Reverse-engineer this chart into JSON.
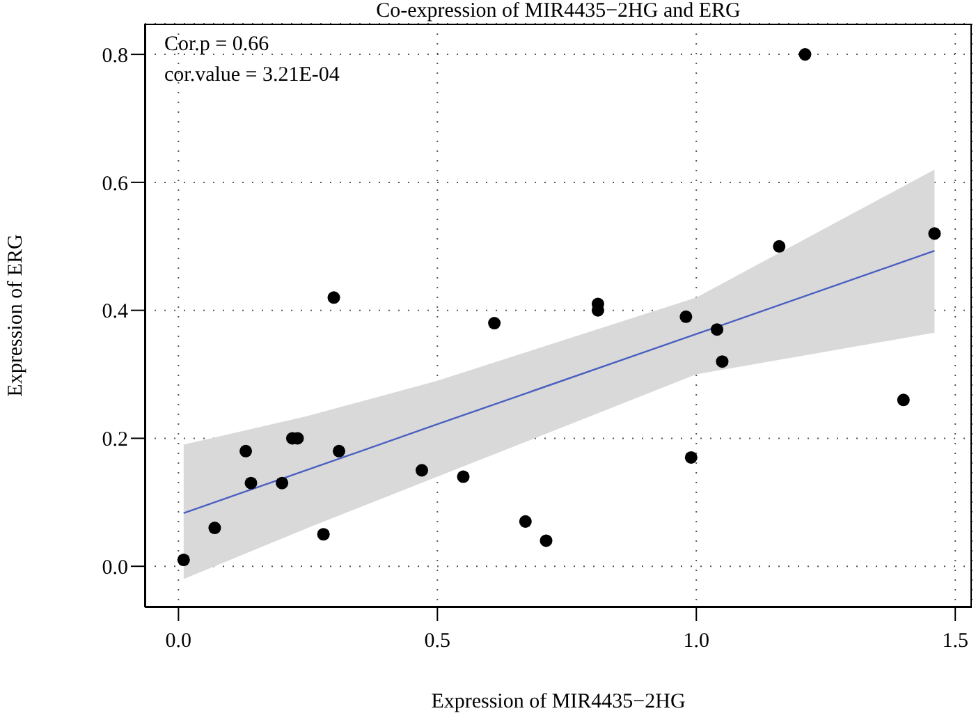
{
  "chart_data": {
    "type": "scatter",
    "title": "Co-expression of MIR4435−2HG and ERG",
    "xlabel": "Expression of MIR4435−2HG",
    "ylabel": "Expression of ERG",
    "annotations": [
      "Cor.p = 0.66",
      "cor.value = 3.21E-04"
    ],
    "xlim": [
      -0.065,
      1.532
    ],
    "ylim": [
      -0.064,
      0.848
    ],
    "xticks": [
      {
        "value": 0,
        "label": "0.0"
      },
      {
        "value": 0.5,
        "label": "0.5"
      },
      {
        "value": 1,
        "label": "1.0"
      },
      {
        "value": 1.5,
        "label": "1.5"
      }
    ],
    "yticks": [
      {
        "value": 0,
        "label": "0.0"
      },
      {
        "value": 0.2,
        "label": "0.2"
      },
      {
        "value": 0.4,
        "label": "0.4"
      },
      {
        "value": 0.6,
        "label": "0.6"
      },
      {
        "value": 0.8,
        "label": "0.8"
      }
    ],
    "grid": true,
    "marker": "circle",
    "series": [
      {
        "color": "#000000",
        "x": [
          0.01,
          0.07,
          0.13,
          0.14,
          0.2,
          0.22,
          0.23,
          0.28,
          0.3,
          0.31,
          0.47,
          0.55,
          0.61,
          0.67,
          0.71,
          0.81,
          0.81,
          0.98,
          0.99,
          1.04,
          1.05,
          1.16,
          1.21,
          1.4,
          1.46
        ],
        "values": [
          0.01,
          0.06,
          0.18,
          0.13,
          0.13,
          0.2,
          0.2,
          0.05,
          0.42,
          0.18,
          0.15,
          0.14,
          0.38,
          0.07,
          0.04,
          0.41,
          0.4,
          0.39,
          0.17,
          0.37,
          0.32,
          0.5,
          0.8,
          0.26,
          0.52
        ]
      },
      {
        "type": "line",
        "marker": "none",
        "color": "#4a5fc1",
        "x": [
          0.01,
          0.25,
          0.5,
          1.0,
          1.46
        ],
        "values": [
          0.083,
          0.151,
          0.222,
          0.363,
          0.493
        ],
        "lower": [
          -0.02,
          0.06,
          0.14,
          0.3,
          0.365
        ],
        "upper": [
          0.19,
          0.235,
          0.29,
          0.42,
          0.62
        ]
      }
    ]
  }
}
